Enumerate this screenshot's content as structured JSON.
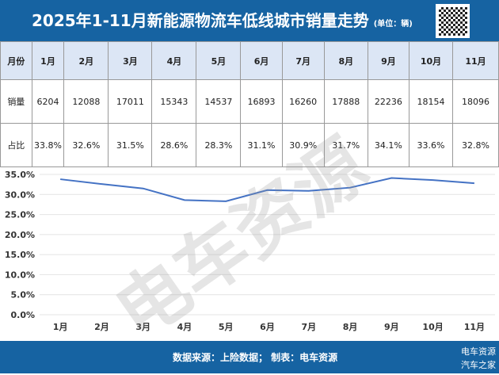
{
  "header": {
    "title": "2025年1-11月新能源物流车低线城市销量走势",
    "unit": "(单位：辆)"
  },
  "table": {
    "row_labels": [
      "月份",
      "销量",
      "占比"
    ],
    "months": [
      "1月",
      "2月",
      "3月",
      "4月",
      "5月",
      "6月",
      "7月",
      "8月",
      "9月",
      "10月",
      "11月"
    ],
    "sales": [
      "6204",
      "12088",
      "17011",
      "15343",
      "14537",
      "16893",
      "16260",
      "17888",
      "22236",
      "18154",
      "18096"
    ],
    "share": [
      "33.8%",
      "32.6%",
      "31.5%",
      "28.6%",
      "28.3%",
      "31.1%",
      "30.9%",
      "31.7%",
      "34.1%",
      "33.6%",
      "32.8%"
    ]
  },
  "chart_data": {
    "type": "line",
    "categories": [
      "1月",
      "2月",
      "3月",
      "4月",
      "5月",
      "6月",
      "7月",
      "8月",
      "9月",
      "10月",
      "11月"
    ],
    "series": [
      {
        "name": "占比",
        "values": [
          33.8,
          32.6,
          31.5,
          28.6,
          28.3,
          31.1,
          30.9,
          31.7,
          34.1,
          33.6,
          32.8
        ],
        "color": "#4472c4"
      }
    ],
    "ylim": [
      0,
      35
    ],
    "yticks": [
      "0.0%",
      "5.0%",
      "10.0%",
      "15.0%",
      "20.0%",
      "25.0%",
      "30.0%",
      "35.0%"
    ],
    "grid": true
  },
  "footer": {
    "source": "数据来源：上险数据；  制表：电车资源",
    "watermark1": "电车资源",
    "watermark2": "汽车之家"
  },
  "watermark": "电车资源"
}
